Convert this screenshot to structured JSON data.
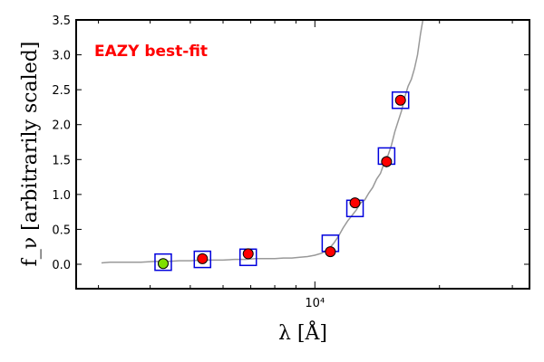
{
  "chart_data": {
    "type": "scatter",
    "title": "",
    "annotation": "EAZY best-fit",
    "annotation_color": "#ff0000",
    "xlabel": "λ [Å]",
    "ylabel": "f_ν [arbitrarily scaled]",
    "xscale": "log",
    "ylim": [
      -0.35,
      3.5
    ],
    "y_ticks": [
      0.0,
      0.5,
      1.0,
      1.5,
      2.0,
      2.5,
      3.0,
      3.5
    ],
    "y_tick_labels": [
      "0.0",
      "0.5",
      "1.0",
      "1.5",
      "2.0",
      "2.5",
      "3.0",
      "3.5"
    ],
    "x_tick_labels": [
      {
        "value": 10000,
        "label": "10⁴"
      }
    ],
    "grid": false,
    "colors": {
      "spectrum": "#999999",
      "model_box": "#0000dd",
      "observed": "#ff0000",
      "observed_first": "#7fe000",
      "marker_edge": "#000000"
    },
    "model_points": {
      "x": [
        4300,
        5350,
        6900,
        10900,
        12500,
        14900,
        16100
      ],
      "y": [
        0.03,
        0.07,
        0.1,
        0.3,
        0.8,
        1.55,
        2.35
      ]
    },
    "observed_points": {
      "x": [
        4300,
        5350,
        6900,
        10900,
        12500,
        14900,
        16100
      ],
      "y": [
        0.01,
        0.08,
        0.15,
        0.18,
        0.88,
        1.47,
        2.35
      ],
      "yerr": [
        0.01,
        0.02,
        0.02,
        0.03,
        0.04,
        0.08,
        0.05
      ]
    },
    "spectrum": {
      "x": [
        3050,
        3200,
        3500,
        3800,
        4100,
        4400,
        4700,
        5000,
        5300,
        5600,
        6000,
        6400,
        6800,
        7200,
        7600,
        8000,
        8400,
        8800,
        9200,
        9600,
        10000,
        10400,
        10800,
        11100,
        11400,
        11700,
        12000,
        12300,
        12600,
        12900,
        13200,
        13500,
        13800,
        14100,
        14400,
        14700,
        15000,
        15300,
        15600,
        15900,
        16200,
        16500,
        16800,
        17100,
        17400,
        17700,
        18000,
        18300
      ],
      "y": [
        0.02,
        0.03,
        0.03,
        0.03,
        0.04,
        0.04,
        0.05,
        0.05,
        0.06,
        0.06,
        0.06,
        0.07,
        0.07,
        0.08,
        0.08,
        0.08,
        0.09,
        0.09,
        0.1,
        0.11,
        0.13,
        0.16,
        0.22,
        0.3,
        0.4,
        0.52,
        0.62,
        0.7,
        0.78,
        0.88,
        0.92,
        1.02,
        1.1,
        1.22,
        1.3,
        1.45,
        1.55,
        1.7,
        1.9,
        2.05,
        2.2,
        2.4,
        2.55,
        2.65,
        2.8,
        3.0,
        3.3,
        3.55
      ]
    }
  }
}
